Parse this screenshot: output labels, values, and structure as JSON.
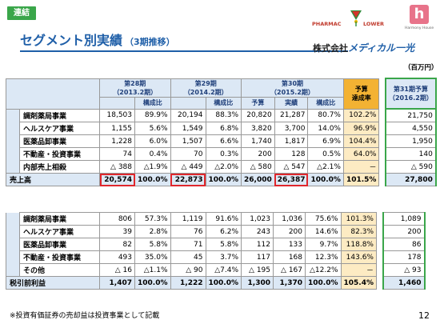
{
  "badge": "連結",
  "title": "セグメント別実績",
  "subtitle": "（3期推移）",
  "logo": {
    "brand_left": "PHARMAC",
    "brand_right": "LOWER",
    "logo2_letter": "h",
    "logo2_text": "Harmony House",
    "company_prefix": "株式会社",
    "company_name": "メディカル一光"
  },
  "unit": "（百万円）",
  "columns": {
    "p28": "第28期",
    "p28_date": "（2013.2期）",
    "p29": "第29期",
    "p29_date": "（2014.2期）",
    "p30": "第30期",
    "p30_date": "（2015.2期）",
    "comp": "構成比",
    "budget": "予算",
    "actual": "実績",
    "budget_achv_1": "予算",
    "budget_achv_2": "達成率",
    "p31_1": "第31期予算",
    "p31_2": "（2016.2期）"
  },
  "sales": [
    {
      "label": "調剤薬局事業",
      "a28": "18,503",
      "c28": "89.9%",
      "a29": "20,194",
      "c29": "88.3%",
      "b30": "20,820",
      "a30": "21,287",
      "c30": "80.7%",
      "achv": "102.2%",
      "f31": "21,750"
    },
    {
      "label": "ヘルスケア事業",
      "a28": "1,155",
      "c28": "5.6%",
      "a29": "1,549",
      "c29": "6.8%",
      "b30": "3,820",
      "a30": "3,700",
      "c30": "14.0%",
      "achv": "96.9%",
      "f31": "4,550"
    },
    {
      "label": "医薬品卸事業",
      "a28": "1,228",
      "c28": "6.0%",
      "a29": "1,507",
      "c29": "6.6%",
      "b30": "1,740",
      "a30": "1,817",
      "c30": "6.9%",
      "achv": "104.4%",
      "f31": "1,950"
    },
    {
      "label": "不動産・投資事業",
      "a28": "74",
      "c28": "0.4%",
      "a29": "70",
      "c29": "0.3%",
      "b30": "200",
      "a30": "128",
      "c30": "0.5%",
      "achv": "64.0%",
      "f31": "140"
    },
    {
      "label": "内部売上相殺",
      "a28": "△ 388",
      "c28": "△1.9%",
      "a29": "△ 449",
      "c29": "△2.0%",
      "b30": "△ 580",
      "a30": "△ 547",
      "c30": "△2.1%",
      "achv": "－",
      "f31": "△ 590"
    }
  ],
  "sales_total": {
    "label": "売上高",
    "a28": "20,574",
    "c28": "100.0%",
    "a29": "22,873",
    "c29": "100.0%",
    "b30": "26,000",
    "a30": "26,387",
    "c30": "100.0%",
    "achv": "101.5%",
    "f31": "27,800"
  },
  "profit": [
    {
      "label": "調剤薬局事業",
      "a28": "806",
      "c28": "57.3%",
      "a29": "1,119",
      "c29": "91.6%",
      "b30": "1,023",
      "a30": "1,036",
      "c30": "75.6%",
      "achv": "101.3%",
      "f31": "1,089"
    },
    {
      "label": "ヘルスケア事業",
      "a28": "39",
      "c28": "2.8%",
      "a29": "76",
      "c29": "6.2%",
      "b30": "243",
      "a30": "200",
      "c30": "14.6%",
      "achv": "82.3%",
      "f31": "200"
    },
    {
      "label": "医薬品卸事業",
      "a28": "82",
      "c28": "5.8%",
      "a29": "71",
      "c29": "5.8%",
      "b30": "112",
      "a30": "133",
      "c30": "9.7%",
      "achv": "118.8%",
      "f31": "86"
    },
    {
      "label": "不動産・投資事業",
      "a28": "493",
      "c28": "35.0%",
      "a29": "45",
      "c29": "3.7%",
      "b30": "117",
      "a30": "168",
      "c30": "12.3%",
      "achv": "143.6%",
      "f31": "178"
    },
    {
      "label": "その他",
      "a28": "△ 16",
      "c28": "△1.1%",
      "a29": "△ 90",
      "c29": "△7.4%",
      "b30": "△ 195",
      "a30": "△ 167",
      "c30": "△12.2%",
      "achv": "－",
      "f31": "△ 93"
    }
  ],
  "profit_total": {
    "label": "税引前利益",
    "a28": "1,407",
    "c28": "100.0%",
    "a29": "1,222",
    "c29": "100.0%",
    "b30": "1,300",
    "a30": "1,370",
    "c30": "100.0%",
    "achv": "105.4%",
    "f31": "1,460"
  },
  "note": "※投資有価証券の売却益は投資事業として記載",
  "page_number": "12",
  "colors": {
    "accent": "#1f5fa8",
    "badge": "#3aa64a",
    "header_fill": "#dce8f5",
    "budget_fill": "#f3b233",
    "highlight": "#e0272c"
  }
}
